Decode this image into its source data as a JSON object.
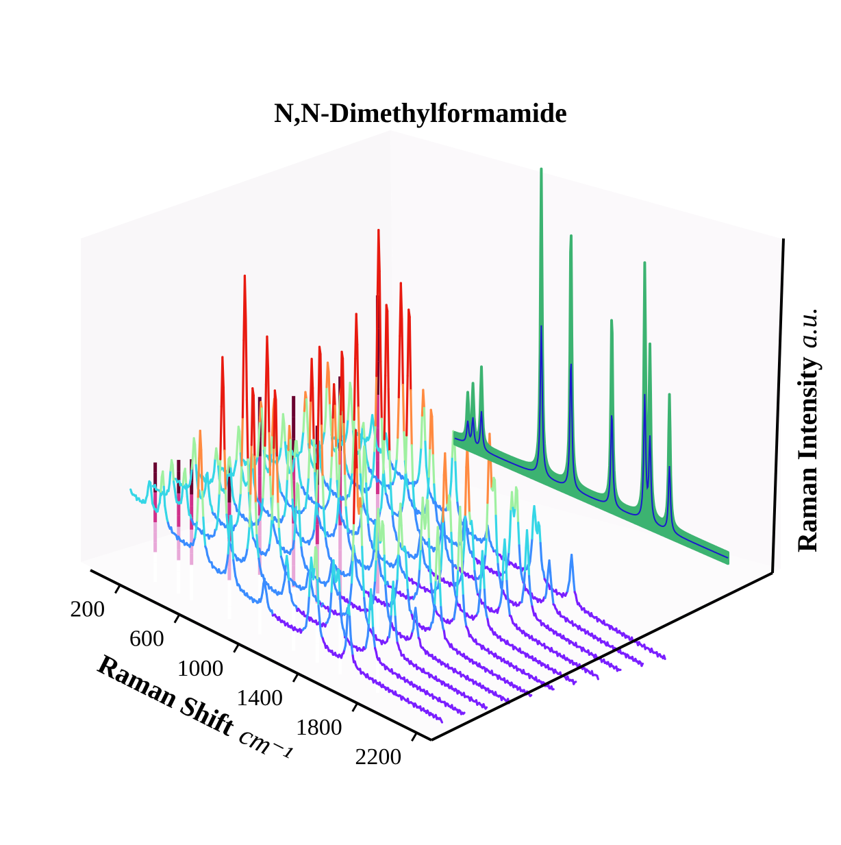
{
  "chart_data": {
    "type": "line",
    "title": "N,N-Dimethylformamide",
    "xlabel": "Raman Shift",
    "xlabel_unit": "cm⁻¹",
    "zlabel": "Raman Intensity",
    "zlabel_unit": "a.u.",
    "xlim": [
      0,
      2300
    ],
    "x_ticks": [
      "200",
      "600",
      "1000",
      "1400",
      "1800",
      "2200"
    ],
    "view": "3d-waterfall",
    "grid": false,
    "colormap_spectra": [
      "#7a1fff",
      "#3a8cff",
      "#35d6e6",
      "#9ff0a0",
      "#ff8a40",
      "#e81a10"
    ],
    "colormap_reference": [
      "#ffffff",
      "#e8a8d8",
      "#d0308a",
      "#6a0030"
    ],
    "reference_fill_color": "#3cb371",
    "reference_mean_color": "#1a1acc",
    "series_count": 11,
    "peak_positions_cm1": [
      318,
      405,
      660,
      865,
      1093,
      1253,
      1407,
      1440,
      1660
    ],
    "reference_peaks": [
      {
        "x": 160,
        "height": 0.22
      },
      {
        "x": 318,
        "height": 0.26
      },
      {
        "x": 405,
        "height": 0.28
      },
      {
        "x": 660,
        "height": 0.32
      },
      {
        "x": 865,
        "height": 0.55
      },
      {
        "x": 1093,
        "height": 0.6
      },
      {
        "x": 1253,
        "height": 0.55
      },
      {
        "x": 1407,
        "height": 0.72
      },
      {
        "x": 1660,
        "height": 1.0
      }
    ],
    "representative_peaks": [
      {
        "x": 318,
        "height": 0.3
      },
      {
        "x": 405,
        "height": 0.28
      },
      {
        "x": 660,
        "height": 0.95
      },
      {
        "x": 865,
        "height": 0.85
      },
      {
        "x": 1093,
        "height": 0.18
      },
      {
        "x": 1407,
        "height": 0.6
      },
      {
        "x": 1440,
        "height": 0.45
      },
      {
        "x": 1660,
        "height": 0.42
      }
    ]
  }
}
